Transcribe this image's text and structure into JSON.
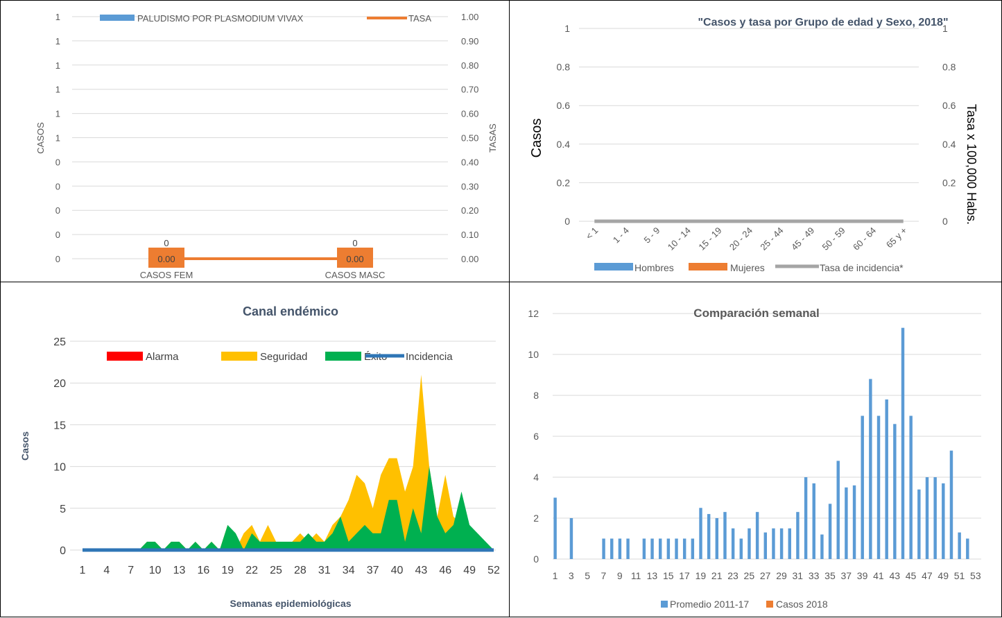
{
  "chart_data": [
    {
      "type": "bar",
      "legend": [
        "PALUDISMO POR PLASMODIUM VIVAX",
        "TASA"
      ],
      "legend_position": "top",
      "categories": [
        "CASOS FEM",
        "CASOS MASC"
      ],
      "series": [
        {
          "name": "PALUDISMO POR PLASMODIUM VIVAX",
          "values": [
            0,
            0
          ],
          "data_labels": [
            "0",
            "0"
          ]
        },
        {
          "name": "TASA",
          "type": "line",
          "values": [
            0.0,
            0.0
          ],
          "data_labels": [
            "0.00",
            "0.00"
          ]
        }
      ],
      "ylabel": "CASOS",
      "y2label": "TASAS",
      "left_ticks": [
        "0",
        "0",
        "0",
        "0",
        "0",
        "1",
        "1",
        "1",
        "1",
        "1",
        "1"
      ],
      "right_ticks": [
        "0.00",
        "0.10",
        "0.20",
        "0.30",
        "0.40",
        "0.50",
        "0.60",
        "0.70",
        "0.80",
        "0.90",
        "1.00"
      ],
      "y2lim": [
        0,
        1
      ],
      "grid": true,
      "colors": {
        "bar": "#5B9BD5",
        "line": "#ED7D31"
      }
    },
    {
      "type": "bar",
      "title": "\"Casos y tasa por Grupo de edad y Sexo, 2018\"",
      "categories": [
        "< 1",
        "1 - 4",
        "5 - 9",
        "10 - 14",
        "15 - 19",
        "20 - 24",
        "25 - 44",
        "45 - 49",
        "50 - 59",
        "60 - 64",
        "65 y +"
      ],
      "series": [
        {
          "name": "Hombres",
          "values": [
            0,
            0,
            0,
            0,
            0,
            0,
            0,
            0,
            0,
            0,
            0
          ]
        },
        {
          "name": "Mujeres",
          "values": [
            0,
            0,
            0,
            0,
            0,
            0,
            0,
            0,
            0,
            0,
            0
          ]
        },
        {
          "name": "Tasa de incidencia*",
          "type": "line",
          "values": [
            0,
            0,
            0,
            0,
            0,
            0,
            0,
            0,
            0,
            0,
            0
          ]
        }
      ],
      "ylabel": "Casos",
      "y2label": "Tasa x 100,000 Habs.",
      "left_ticks": [
        "0",
        "0.2",
        "0.4",
        "0.6",
        "0.8",
        "1"
      ],
      "right_ticks": [
        "0",
        "0.2",
        "0.4",
        "0.6",
        "0.8",
        "1"
      ],
      "ylim": [
        0,
        1
      ],
      "legend_position": "bottom",
      "grid": true,
      "colors": {
        "Hombres": "#5B9BD5",
        "Mujeres": "#ED7D31",
        "Tasa de incidencia*": "#A5A5A5"
      }
    },
    {
      "type": "area",
      "title": "Canal endémico",
      "xlabel": "Semanas epidemiológicas",
      "ylabel": "Casos",
      "ylim": [
        0,
        25
      ],
      "y_ticks": [
        "0",
        "5",
        "10",
        "15",
        "20",
        "25"
      ],
      "x_ticks": [
        "1",
        "4",
        "7",
        "10",
        "13",
        "16",
        "19",
        "22",
        "25",
        "28",
        "31",
        "34",
        "37",
        "40",
        "43",
        "46",
        "49",
        "52"
      ],
      "x": [
        1,
        2,
        3,
        4,
        5,
        6,
        7,
        8,
        9,
        10,
        11,
        12,
        13,
        14,
        15,
        16,
        17,
        18,
        19,
        20,
        21,
        22,
        23,
        24,
        25,
        26,
        27,
        28,
        29,
        30,
        31,
        32,
        33,
        34,
        35,
        36,
        37,
        38,
        39,
        40,
        41,
        42,
        43,
        44,
        45,
        46,
        47,
        48,
        49,
        50,
        51,
        52
      ],
      "legend_position": "top",
      "series": [
        {
          "name": "Alarma",
          "values": [
            0,
            0,
            0,
            0,
            0,
            0,
            0,
            0,
            0,
            0,
            0,
            0,
            0,
            0,
            0,
            0,
            0,
            0,
            0,
            0,
            0,
            0,
            0,
            0,
            0,
            0,
            0,
            0,
            0,
            0,
            0,
            0,
            0,
            0,
            0,
            0,
            0,
            0,
            0,
            0,
            0,
            0,
            0,
            0,
            0,
            0,
            0,
            0,
            0,
            0,
            0,
            0
          ]
        },
        {
          "name": "Seguridad",
          "values": [
            0,
            0,
            0,
            0,
            0,
            0,
            0,
            0,
            1,
            1,
            0,
            1,
            1,
            0,
            1,
            0,
            1,
            0,
            3,
            0,
            2,
            3,
            1,
            3,
            1,
            1,
            1,
            2,
            1,
            2,
            1,
            3,
            4,
            6,
            9,
            8,
            5,
            9,
            11,
            11,
            7,
            10,
            21,
            10,
            4,
            9,
            4,
            3,
            2,
            1,
            0,
            0
          ]
        },
        {
          "name": "Éxito",
          "values": [
            0,
            0,
            0,
            0,
            0,
            0,
            0,
            0,
            1,
            1,
            0,
            1,
            1,
            0,
            1,
            0,
            1,
            0,
            3,
            2,
            0,
            2,
            1,
            1,
            1,
            1,
            1,
            1,
            2,
            1,
            1,
            2,
            4,
            1,
            2,
            3,
            2,
            2,
            6,
            6,
            1,
            5,
            2,
            10,
            4,
            2,
            3,
            7,
            3,
            2,
            1,
            0
          ]
        },
        {
          "name": "Incidencia",
          "type": "line",
          "values": [
            0,
            0,
            0,
            0,
            0,
            0,
            0,
            0,
            0,
            0,
            0,
            0,
            0,
            0,
            0,
            0,
            0,
            0,
            0,
            0,
            0,
            0,
            0,
            0,
            0,
            0,
            0,
            0,
            0,
            0,
            0,
            0,
            0,
            0,
            0,
            0,
            0,
            0,
            0,
            0,
            0,
            0,
            0,
            0,
            0,
            0,
            0,
            0,
            0,
            0,
            0,
            0
          ]
        }
      ],
      "colors": {
        "Alarma": "#FF0000",
        "Seguridad": "#FFC000",
        "Éxito": "#00B050",
        "Incidencia": "#2E75B6"
      }
    },
    {
      "type": "bar",
      "title": "Comparación semanal",
      "ylim": [
        0,
        12
      ],
      "y_ticks": [
        "0",
        "2",
        "4",
        "6",
        "8",
        "10",
        "12"
      ],
      "categories": [
        "1",
        "2",
        "3",
        "4",
        "5",
        "6",
        "7",
        "8",
        "9",
        "10",
        "11",
        "12",
        "13",
        "14",
        "15",
        "16",
        "17",
        "18",
        "19",
        "20",
        "21",
        "22",
        "23",
        "24",
        "25",
        "26",
        "27",
        "28",
        "29",
        "30",
        "31",
        "32",
        "33",
        "34",
        "35",
        "36",
        "37",
        "38",
        "39",
        "40",
        "41",
        "42",
        "43",
        "44",
        "45",
        "46",
        "47",
        "48",
        "49",
        "50",
        "51",
        "52",
        "53"
      ],
      "x_tick_labels": [
        "1",
        "3",
        "5",
        "7",
        "9",
        "11",
        "13",
        "15",
        "17",
        "19",
        "21",
        "23",
        "25",
        "27",
        "29",
        "31",
        "33",
        "35",
        "37",
        "39",
        "41",
        "43",
        "45",
        "47",
        "49",
        "51",
        "53"
      ],
      "series": [
        {
          "name": "Promedio 2011-17",
          "values": [
            3,
            0,
            2,
            0,
            0,
            0,
            1,
            1,
            1,
            1,
            0,
            1,
            1,
            1,
            1,
            1,
            1,
            1,
            2.5,
            2.2,
            2,
            2.3,
            1.5,
            1,
            1.5,
            2.3,
            1.3,
            1.5,
            1.5,
            1.5,
            2.3,
            4,
            3.7,
            1.2,
            2.7,
            4.8,
            3.5,
            3.6,
            7,
            8.8,
            7,
            7.8,
            6.6,
            11.3,
            7,
            3.4,
            4,
            4,
            3.7,
            5.3,
            1.3,
            1,
            0
          ]
        },
        {
          "name": "Casos 2018",
          "values": [
            0,
            0,
            0,
            0,
            0,
            0,
            0,
            0,
            0,
            0,
            0,
            0,
            0,
            0,
            0,
            0,
            0,
            0,
            0,
            0,
            0,
            0,
            0,
            0,
            0,
            0,
            0,
            0,
            0,
            0,
            0,
            0,
            0,
            0,
            0,
            0,
            0,
            0,
            0,
            0,
            0,
            0,
            0,
            0,
            0,
            0,
            0,
            0,
            0,
            0,
            0,
            0,
            0
          ]
        }
      ],
      "legend_position": "bottom",
      "grid": true,
      "colors": {
        "Promedio 2011-17": "#5B9BD5",
        "Casos 2018": "#ED7D31"
      }
    }
  ]
}
